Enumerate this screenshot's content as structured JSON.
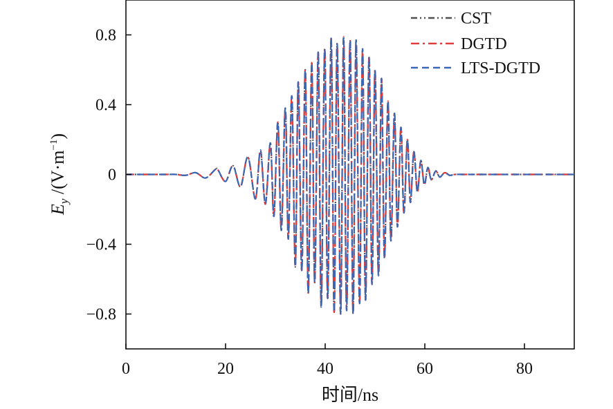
{
  "chart_data": {
    "type": "line",
    "title": "",
    "xlabel": "时间/ns",
    "ylabel_main": "E",
    "ylabel_sub": "y",
    "ylabel_rest": " /(V·m",
    "ylabel_sup": "−1",
    "ylabel_close": ")",
    "xlim": [
      0,
      90
    ],
    "ylim": [
      -1.0,
      1.0
    ],
    "xticks": [
      0,
      20,
      40,
      60,
      80
    ],
    "xtick_labels": [
      "0",
      "20",
      "40",
      "60",
      "80"
    ],
    "yticks": [
      0.8,
      0.4,
      0,
      -0.4,
      -0.8
    ],
    "ytick_labels": [
      "0.8",
      "0.4",
      "0",
      "−0.4",
      "−0.8"
    ],
    "grid": false,
    "legend_position": "top-right",
    "x": [
      0,
      2,
      4,
      6,
      8,
      10,
      12,
      14,
      16,
      18,
      18.5,
      20,
      21.5,
      23,
      24.5,
      26,
      27,
      28,
      29,
      29.7,
      30.5,
      31.2,
      32,
      32.6,
      33.3,
      34,
      34.6,
      35.3,
      36,
      36.6,
      37.3,
      37.9,
      38.6,
      39.2,
      39.9,
      40.5,
      41.2,
      41.8,
      42.4,
      43.1,
      43.7,
      44.3,
      45,
      45.6,
      46.2,
      46.9,
      47.5,
      48.1,
      48.8,
      49.4,
      50,
      50.7,
      51.3,
      51.9,
      52.6,
      53.2,
      53.9,
      54.5,
      55.2,
      55.8,
      56.5,
      57.1,
      57.8,
      58.5,
      59.2,
      59.9,
      60.6,
      61.3,
      62.2,
      63,
      64,
      65,
      66,
      67.5,
      69,
      70.5,
      72,
      74,
      76,
      78,
      80,
      82,
      84,
      86,
      88,
      90
    ],
    "series": [
      {
        "name": "CST",
        "color": "#505050",
        "dash": "9 4 2 4 2 4",
        "values": [
          0,
          0,
          0,
          0,
          0,
          0,
          -0.005,
          0.01,
          -0.02,
          0.03,
          0.025,
          -0.04,
          0.05,
          -0.07,
          0.1,
          -0.14,
          0.14,
          -0.17,
          0.18,
          -0.24,
          0.3,
          -0.32,
          0.38,
          -0.37,
          0.45,
          -0.53,
          0.53,
          -0.55,
          0.6,
          -0.68,
          0.64,
          -0.62,
          0.7,
          -0.76,
          0.72,
          -0.71,
          0.78,
          -0.79,
          0.75,
          -0.8,
          0.79,
          -0.78,
          0.77,
          -0.8,
          0.77,
          -0.74,
          0.72,
          -0.72,
          0.67,
          -0.63,
          0.6,
          -0.58,
          0.55,
          -0.48,
          0.42,
          -0.38,
          0.35,
          -0.3,
          0.27,
          -0.22,
          0.2,
          -0.16,
          0.13,
          -0.1,
          0.08,
          -0.06,
          0.04,
          -0.03,
          0.02,
          -0.015,
          0.01,
          -0.005,
          0,
          0,
          0,
          0,
          0,
          0,
          0,
          0,
          0,
          0,
          0,
          0,
          0,
          0
        ]
      },
      {
        "name": "DGTD",
        "color": "#e23b3b",
        "dash": "12 5 3 5",
        "values": [
          0,
          0,
          0,
          0,
          0,
          0,
          -0.005,
          0.01,
          -0.02,
          0.03,
          0.025,
          -0.04,
          0.05,
          -0.07,
          0.1,
          -0.14,
          0.14,
          -0.17,
          0.18,
          -0.24,
          0.3,
          -0.32,
          0.38,
          -0.37,
          0.45,
          -0.53,
          0.53,
          -0.55,
          0.6,
          -0.68,
          0.64,
          -0.62,
          0.7,
          -0.76,
          0.72,
          -0.71,
          0.78,
          -0.79,
          0.75,
          -0.8,
          0.79,
          -0.78,
          0.77,
          -0.8,
          0.77,
          -0.74,
          0.72,
          -0.72,
          0.67,
          -0.63,
          0.6,
          -0.58,
          0.55,
          -0.48,
          0.42,
          -0.38,
          0.35,
          -0.3,
          0.27,
          -0.22,
          0.2,
          -0.16,
          0.13,
          -0.1,
          0.08,
          -0.06,
          0.04,
          -0.03,
          0.02,
          -0.015,
          0.01,
          -0.005,
          0,
          0,
          0,
          0,
          0,
          0,
          0,
          0,
          0,
          0,
          0,
          0,
          0,
          0
        ]
      },
      {
        "name": "LTS-DGTD",
        "color": "#3a66b4",
        "dash": "10 6",
        "values": [
          0,
          0,
          0,
          0,
          0,
          0,
          -0.005,
          0.01,
          -0.02,
          0.03,
          0.025,
          -0.04,
          0.05,
          -0.07,
          0.1,
          -0.14,
          0.14,
          -0.17,
          0.18,
          -0.24,
          0.3,
          -0.32,
          0.38,
          -0.37,
          0.45,
          -0.53,
          0.53,
          -0.55,
          0.6,
          -0.68,
          0.64,
          -0.62,
          0.7,
          -0.76,
          0.72,
          -0.71,
          0.78,
          -0.79,
          0.75,
          -0.8,
          0.79,
          -0.78,
          0.77,
          -0.8,
          0.77,
          -0.74,
          0.72,
          -0.72,
          0.67,
          -0.63,
          0.6,
          -0.58,
          0.55,
          -0.48,
          0.42,
          -0.38,
          0.35,
          -0.3,
          0.27,
          -0.22,
          0.2,
          -0.16,
          0.13,
          -0.1,
          0.08,
          -0.06,
          0.04,
          -0.03,
          0.02,
          -0.015,
          0.01,
          -0.005,
          0,
          0,
          0,
          0,
          0,
          0,
          0,
          0,
          0,
          0,
          0,
          0,
          0,
          0
        ]
      }
    ]
  }
}
